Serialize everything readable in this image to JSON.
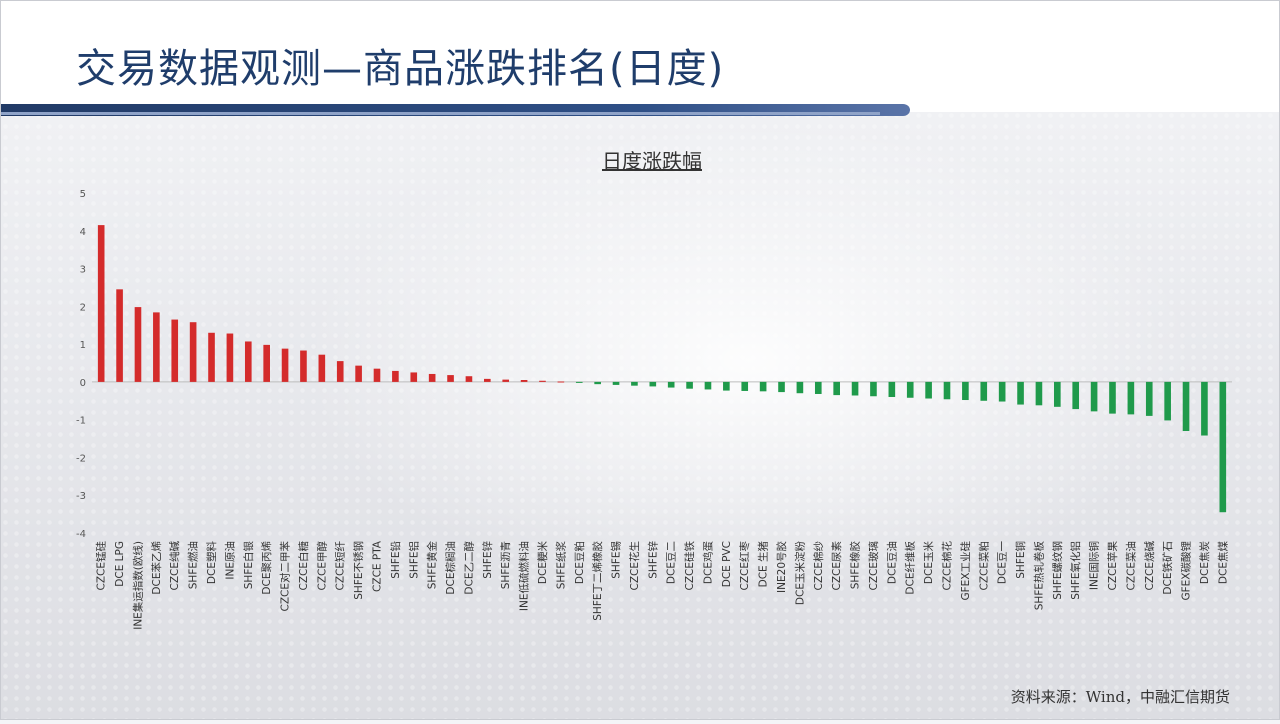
{
  "slide": {
    "title": "交易数据观测—商品涨跌排名(日度)",
    "source": "资料来源：Wind，中融汇信期货"
  },
  "colors": {
    "up": "#d42b2b",
    "down": "#1f9a4b",
    "title": "#1f3d6b"
  },
  "chart_data": {
    "type": "bar",
    "title": "日度涨跌幅",
    "xlabel": "",
    "ylabel": "",
    "ylim": [
      -4,
      5
    ],
    "yticks": [
      5,
      4,
      3,
      2,
      1,
      0,
      -1,
      -2,
      -3,
      -4
    ],
    "grid": false,
    "categories": [
      "CZCE锰硅",
      "DCE LPG",
      "INE集运指数(欧线)",
      "DCE苯乙烯",
      "CZCE纯碱",
      "SHFE燃油",
      "DCE塑料",
      "INE原油",
      "SHFE白银",
      "DCE聚丙烯",
      "CZCE对二甲苯",
      "CZCE白糖",
      "CZCE甲醇",
      "CZCE短纤",
      "SHFE不锈钢",
      "CZCE PTA",
      "SHFE铅",
      "SHFE铝",
      "SHFE黄金",
      "DCE棕榈油",
      "DCE乙二醇",
      "SHFE锌",
      "SHFE沥青",
      "INE低硫燃料油",
      "DCE粳米",
      "SHFE纸浆",
      "DCE豆粕",
      "SHFE丁二烯橡胶",
      "SHFE锡",
      "CZCE花生",
      "SHFE锌",
      "DCE豆二",
      "CZCE硅铁",
      "DCE鸡蛋",
      "DCE PVC",
      "CZCE红枣",
      "DCE 生猪",
      "INE20号胶",
      "DCE玉米淀粉",
      "CZCE棉纱",
      "CZCE尿素",
      "SHFE橡胶",
      "CZCE玻璃",
      "DCE豆油",
      "DCE纤维板",
      "DCE玉米",
      "CZCE棉花",
      "GFEX工业硅",
      "CZCE菜粕",
      "DCE豆一",
      "SHFE铜",
      "SHFE热轧卷板",
      "SHFE螺纹钢",
      "SHFE氧化铝",
      "INE国际铜",
      "CZCE苹果",
      "CZCE菜油",
      "CZCE烧碱",
      "DCE铁矿石",
      "GFEX碳酸锂",
      "DCE焦炭",
      "DCE焦煤"
    ],
    "values": [
      4.15,
      2.45,
      1.98,
      1.84,
      1.65,
      1.58,
      1.3,
      1.28,
      1.07,
      0.98,
      0.88,
      0.83,
      0.72,
      0.55,
      0.43,
      0.35,
      0.29,
      0.25,
      0.21,
      0.18,
      0.15,
      0.08,
      0.06,
      0.05,
      0.03,
      0.01,
      -0.02,
      -0.06,
      -0.08,
      -0.1,
      -0.12,
      -0.15,
      -0.18,
      -0.2,
      -0.23,
      -0.24,
      -0.25,
      -0.27,
      -0.3,
      -0.32,
      -0.35,
      -0.36,
      -0.38,
      -0.4,
      -0.42,
      -0.44,
      -0.46,
      -0.48,
      -0.5,
      -0.52,
      -0.6,
      -0.62,
      -0.66,
      -0.72,
      -0.78,
      -0.84,
      -0.86,
      -0.9,
      -1.02,
      -1.3,
      -1.42,
      -3.45
    ]
  }
}
